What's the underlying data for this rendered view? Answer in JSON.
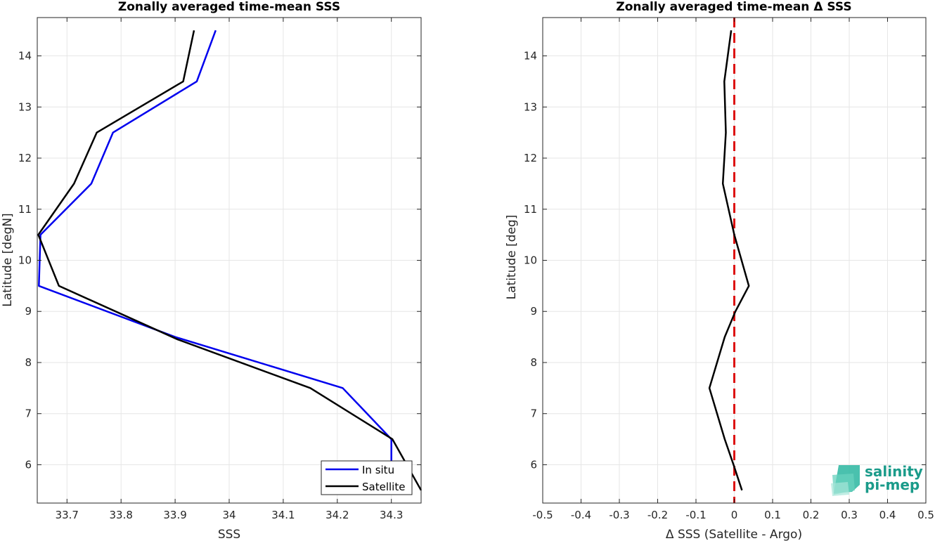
{
  "chart_data": [
    {
      "type": "line",
      "title": "Zonally averaged time-mean SSS",
      "xlabel": "SSS",
      "ylabel": "Latitude [degN]",
      "xlim": [
        33.645,
        34.355
      ],
      "ylim": [
        5.25,
        14.75
      ],
      "xticks": [
        "33.7",
        "33.8",
        "33.9",
        "34",
        "34.1",
        "34.2",
        "34.3"
      ],
      "yticks": [
        "6",
        "7",
        "8",
        "9",
        "10",
        "11",
        "12",
        "13",
        "14"
      ],
      "grid": true,
      "legend_position": "bottom-right",
      "series": [
        {
          "name": "In situ",
          "color": "#0000ee",
          "x": [
            34.3,
            34.3,
            34.21,
            33.9,
            33.648,
            33.651,
            33.745,
            33.785,
            33.94,
            33.975
          ],
          "y": [
            6.0,
            6.5,
            7.5,
            8.5,
            9.5,
            10.5,
            11.5,
            12.5,
            13.5,
            14.5
          ]
        },
        {
          "name": "Satellite",
          "color": "#000000",
          "x": [
            34.355,
            34.302,
            34.15,
            33.905,
            33.685,
            33.647,
            33.713,
            33.755,
            33.915,
            33.935
          ],
          "y": [
            5.5,
            6.5,
            7.5,
            8.45,
            9.5,
            10.5,
            11.5,
            12.5,
            13.5,
            14.5
          ]
        }
      ]
    },
    {
      "type": "line",
      "title": "Zonally averaged time-mean Δ SSS",
      "xlabel": "Δ SSS (Satellite - Argo)",
      "ylabel": "Latitude [deg]",
      "xlim": [
        -0.5,
        0.5
      ],
      "ylim": [
        5.25,
        14.75
      ],
      "xticks": [
        "-0.5",
        "-0.4",
        "-0.3",
        "-0.2",
        "-0.1",
        "0",
        "0.1",
        "0.2",
        "0.3",
        "0.4",
        "0.5"
      ],
      "yticks": [
        "6",
        "7",
        "8",
        "9",
        "10",
        "11",
        "12",
        "13",
        "14"
      ],
      "grid": true,
      "series": [
        {
          "color": "#000000",
          "x": [
            0.02,
            -0.002,
            -0.025,
            -0.065,
            -0.025,
            0.003,
            0.038,
            0.0,
            -0.03,
            -0.022,
            -0.026,
            -0.008
          ],
          "y": [
            5.5,
            6.0,
            6.5,
            7.5,
            8.5,
            9.0,
            9.5,
            10.5,
            11.5,
            12.5,
            13.5,
            14.5
          ]
        }
      ],
      "reference_line": {
        "x": 0,
        "color": "#dd1111",
        "style": "dashed"
      }
    }
  ],
  "logo": {
    "line1": "salinity",
    "line2": "pi-mep"
  }
}
